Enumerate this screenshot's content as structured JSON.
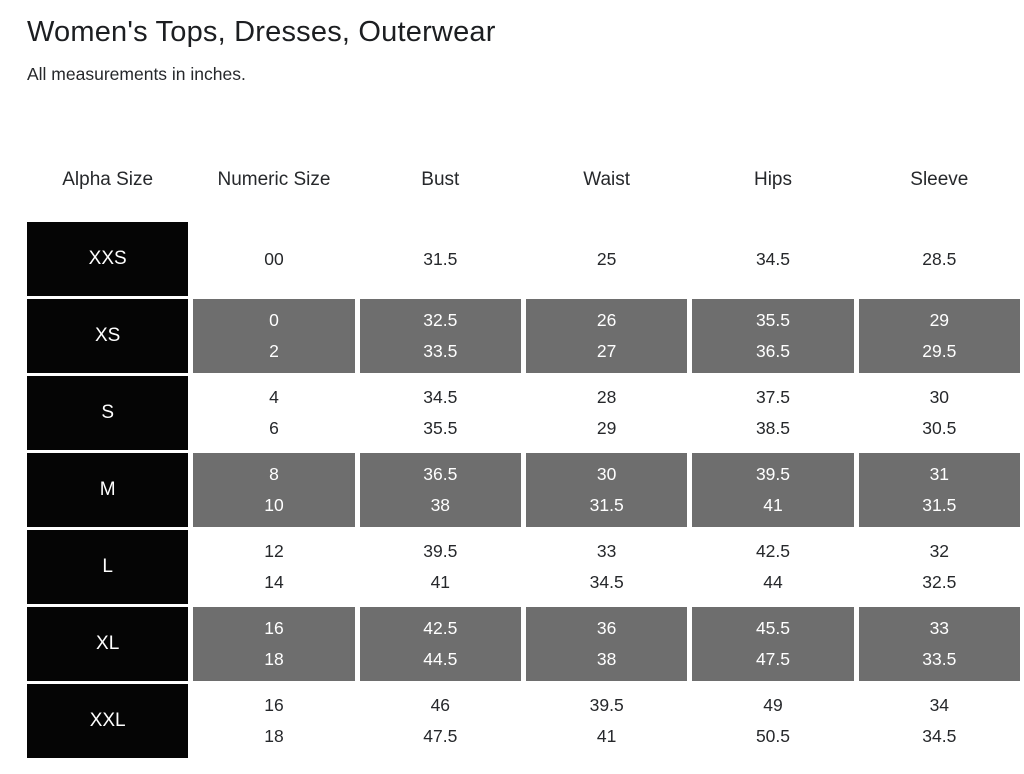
{
  "page": {
    "title": "Women's Tops, Dresses, Outerwear",
    "subtitle": "All measurements in inches."
  },
  "colors": {
    "background": "#ffffff",
    "alpha_cell_bg": "#050505",
    "shaded_cell_bg": "#6e6e6e",
    "cell_text_light": "#ffffff",
    "text_dark": "#26282b"
  },
  "chart_data": {
    "type": "table",
    "title": "Women's Tops, Dresses, Outerwear",
    "subtitle": "All measurements in inches.",
    "units": "inches",
    "columns": [
      "Alpha Size",
      "Numeric Size",
      "Bust",
      "Waist",
      "Hips",
      "Sleeve"
    ],
    "rows": [
      {
        "alpha": "XXS",
        "shaded": false,
        "cells": [
          [
            "00"
          ],
          [
            "31.5"
          ],
          [
            "25"
          ],
          [
            "34.5"
          ],
          [
            "28.5"
          ]
        ]
      },
      {
        "alpha": "XS",
        "shaded": true,
        "cells": [
          [
            "0",
            "2"
          ],
          [
            "32.5",
            "33.5"
          ],
          [
            "26",
            "27"
          ],
          [
            "35.5",
            "36.5"
          ],
          [
            "29",
            "29.5"
          ]
        ]
      },
      {
        "alpha": "S",
        "shaded": false,
        "cells": [
          [
            "4",
            "6"
          ],
          [
            "34.5",
            "35.5"
          ],
          [
            "28",
            "29"
          ],
          [
            "37.5",
            "38.5"
          ],
          [
            "30",
            "30.5"
          ]
        ]
      },
      {
        "alpha": "M",
        "shaded": true,
        "cells": [
          [
            "8",
            "10"
          ],
          [
            "36.5",
            "38"
          ],
          [
            "30",
            "31.5"
          ],
          [
            "39.5",
            "41"
          ],
          [
            "31",
            "31.5"
          ]
        ]
      },
      {
        "alpha": "L",
        "shaded": false,
        "cells": [
          [
            "12",
            "14"
          ],
          [
            "39.5",
            "41"
          ],
          [
            "33",
            "34.5"
          ],
          [
            "42.5",
            "44"
          ],
          [
            "32",
            "32.5"
          ]
        ]
      },
      {
        "alpha": "XL",
        "shaded": true,
        "cells": [
          [
            "16",
            "18"
          ],
          [
            "42.5",
            "44.5"
          ],
          [
            "36",
            "38"
          ],
          [
            "45.5",
            "47.5"
          ],
          [
            "33",
            "33.5"
          ]
        ]
      },
      {
        "alpha": "XXL",
        "shaded": false,
        "cells": [
          [
            "16",
            "18"
          ],
          [
            "46",
            "47.5"
          ],
          [
            "39.5",
            "41"
          ],
          [
            "49",
            "50.5"
          ],
          [
            "34",
            "34.5"
          ]
        ]
      }
    ]
  }
}
